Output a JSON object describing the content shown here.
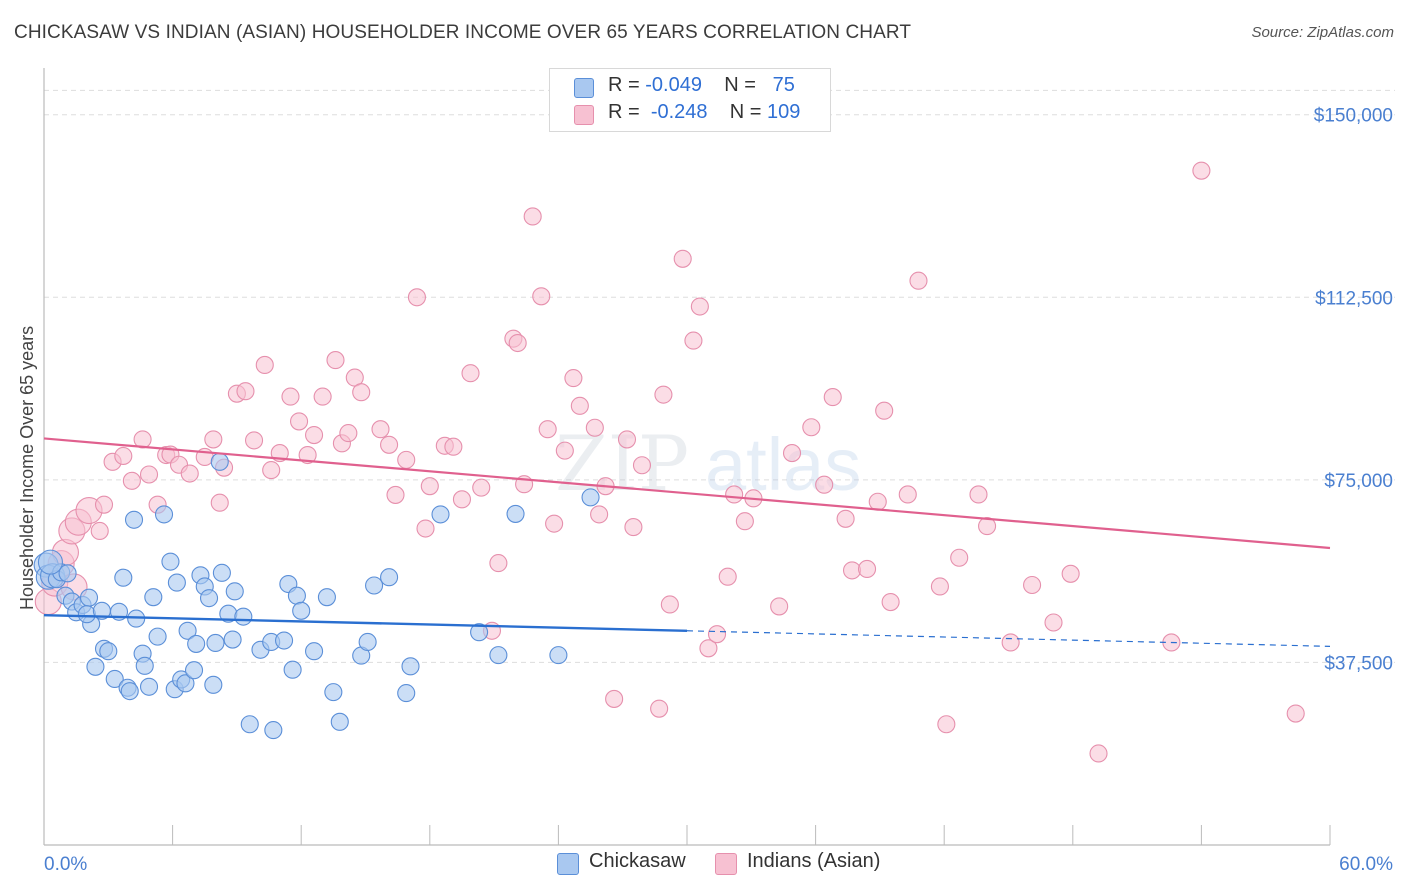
{
  "title": "CHICKASAW VS INDIAN (ASIAN) HOUSEHOLDER INCOME OVER 65 YEARS CORRELATION CHART",
  "source": "Source: ZipAtlas.com",
  "watermark": {
    "zip": "ZIP",
    "atlas": "atlas"
  },
  "legend": {
    "rows": [
      {
        "r_label": "R = ",
        "r_value": "-0.049",
        "n_label": "N = ",
        "n_value": "75"
      },
      {
        "r_label": "R = ",
        "r_value": "-0.248",
        "n_label": "N = ",
        "n_value": "109"
      }
    ]
  },
  "bottom_legend": {
    "series1": "Chickasaw",
    "series2": "Indians (Asian)"
  },
  "colors": {
    "blue_fill": "#a9c8f0",
    "blue_stroke": "#5b8fd8",
    "blue_line": "#2a6fd0",
    "pink_fill": "#f7c1d2",
    "pink_stroke": "#e690ad",
    "pink_line": "#e0608e",
    "tick_text": "#4a7fd0",
    "grid": "#dddddd"
  },
  "chart_data": {
    "type": "scatter",
    "title": "CHICKASAW VS INDIAN (ASIAN) HOUSEHOLDER INCOME OVER 65 YEARS CORRELATION CHART",
    "xlabel": "",
    "ylabel": "Householder Income Over 65 years",
    "xlim": [
      0,
      60
    ],
    "ylim": [
      0,
      160000
    ],
    "x_tick_labels": [
      "0.0%",
      "60.0%"
    ],
    "y_ticks": [
      {
        "value": 150000,
        "label": "$150,000"
      },
      {
        "value": 112500,
        "label": "$112,500"
      },
      {
        "value": 75000,
        "label": "$75,000"
      },
      {
        "value": 37500,
        "label": "$37,500"
      }
    ],
    "series": [
      {
        "name": "Chickasaw",
        "r": -0.049,
        "n": 75,
        "trend": {
          "x0": 0,
          "y0": 47200,
          "x1": 30,
          "y1": 44000,
          "dash_to_x": 60,
          "dash_to_y": 40800
        },
        "points": [
          [
            0.1,
            57500
          ],
          [
            0.2,
            55000
          ],
          [
            0.4,
            55300
          ],
          [
            0.6,
            54600
          ],
          [
            0.8,
            56000
          ],
          [
            1.0,
            51200
          ],
          [
            1.3,
            50000
          ],
          [
            1.5,
            47800
          ],
          [
            1.8,
            49300
          ],
          [
            2.1,
            50800
          ],
          [
            2.2,
            45400
          ],
          [
            2.0,
            47400
          ],
          [
            2.4,
            36600
          ],
          [
            2.8,
            40300
          ],
          [
            3.0,
            39800
          ],
          [
            3.3,
            34100
          ],
          [
            3.5,
            47900
          ],
          [
            3.7,
            54900
          ],
          [
            3.9,
            32300
          ],
          [
            4.0,
            31600
          ],
          [
            4.2,
            66800
          ],
          [
            4.3,
            46500
          ],
          [
            4.6,
            39300
          ],
          [
            4.7,
            36800
          ],
          [
            4.9,
            32500
          ],
          [
            5.1,
            50900
          ],
          [
            5.3,
            42800
          ],
          [
            5.6,
            67900
          ],
          [
            6.1,
            32000
          ],
          [
            6.2,
            53900
          ],
          [
            6.4,
            34000
          ],
          [
            6.6,
            33200
          ],
          [
            6.7,
            44000
          ],
          [
            7.0,
            35900
          ],
          [
            7.1,
            41300
          ],
          [
            7.3,
            55400
          ],
          [
            7.5,
            53100
          ],
          [
            7.7,
            50700
          ],
          [
            7.9,
            32900
          ],
          [
            8.0,
            41500
          ],
          [
            8.2,
            78700
          ],
          [
            8.3,
            55900
          ],
          [
            8.6,
            47500
          ],
          [
            8.8,
            42200
          ],
          [
            8.9,
            52100
          ],
          [
            9.3,
            46900
          ],
          [
            9.6,
            24800
          ],
          [
            10.1,
            40100
          ],
          [
            10.6,
            41700
          ],
          [
            10.7,
            23600
          ],
          [
            11.2,
            42000
          ],
          [
            11.4,
            53600
          ],
          [
            11.6,
            36000
          ],
          [
            11.8,
            51200
          ],
          [
            12.0,
            48100
          ],
          [
            12.6,
            39800
          ],
          [
            13.2,
            50900
          ],
          [
            13.5,
            31400
          ],
          [
            13.8,
            25300
          ],
          [
            14.8,
            38900
          ],
          [
            15.1,
            41700
          ],
          [
            15.4,
            53300
          ],
          [
            16.1,
            55000
          ],
          [
            16.9,
            31200
          ],
          [
            17.1,
            36700
          ],
          [
            18.5,
            67900
          ],
          [
            20.3,
            43700
          ],
          [
            21.2,
            39000
          ],
          [
            22.0,
            68000
          ],
          [
            24.0,
            39000
          ],
          [
            25.5,
            71400
          ],
          [
            0.3,
            58100
          ],
          [
            1.1,
            55800
          ],
          [
            2.7,
            48100
          ],
          [
            5.9,
            58200
          ]
        ]
      },
      {
        "name": "Indians (Asian)",
        "r": -0.248,
        "n": 109,
        "trend": {
          "x0": 0,
          "y0": 83500,
          "x1": 60,
          "y1": 61000
        },
        "points": [
          [
            0.2,
            50000
          ],
          [
            0.5,
            53800
          ],
          [
            0.8,
            57800
          ],
          [
            1.0,
            60100
          ],
          [
            1.3,
            64500
          ],
          [
            1.6,
            66300
          ],
          [
            2.1,
            68700
          ],
          [
            2.6,
            64500
          ],
          [
            2.8,
            69900
          ],
          [
            3.2,
            78700
          ],
          [
            3.7,
            79900
          ],
          [
            4.1,
            74800
          ],
          [
            4.6,
            83300
          ],
          [
            4.9,
            76100
          ],
          [
            5.3,
            69900
          ],
          [
            5.7,
            80100
          ],
          [
            5.9,
            80200
          ],
          [
            6.3,
            78100
          ],
          [
            6.8,
            76300
          ],
          [
            7.5,
            79700
          ],
          [
            7.9,
            83300
          ],
          [
            8.2,
            70300
          ],
          [
            8.4,
            77500
          ],
          [
            9.0,
            92700
          ],
          [
            9.4,
            93200
          ],
          [
            9.8,
            83100
          ],
          [
            10.3,
            98600
          ],
          [
            10.6,
            77000
          ],
          [
            11.0,
            80500
          ],
          [
            11.5,
            92100
          ],
          [
            11.9,
            87000
          ],
          [
            12.3,
            80100
          ],
          [
            12.6,
            84200
          ],
          [
            13.0,
            92100
          ],
          [
            13.6,
            99600
          ],
          [
            13.9,
            82500
          ],
          [
            14.2,
            84600
          ],
          [
            14.5,
            96000
          ],
          [
            14.8,
            93000
          ],
          [
            15.7,
            85400
          ],
          [
            16.1,
            82200
          ],
          [
            16.4,
            71900
          ],
          [
            16.9,
            79100
          ],
          [
            17.4,
            112500
          ],
          [
            17.8,
            65000
          ],
          [
            18.0,
            73700
          ],
          [
            18.7,
            82000
          ],
          [
            19.1,
            81800
          ],
          [
            19.5,
            71000
          ],
          [
            19.9,
            96900
          ],
          [
            20.4,
            73400
          ],
          [
            20.9,
            44000
          ],
          [
            21.2,
            57900
          ],
          [
            21.9,
            104000
          ],
          [
            22.1,
            103100
          ],
          [
            22.4,
            74100
          ],
          [
            22.8,
            129100
          ],
          [
            23.2,
            112700
          ],
          [
            23.5,
            85400
          ],
          [
            23.8,
            66000
          ],
          [
            24.3,
            81000
          ],
          [
            24.7,
            95900
          ],
          [
            25.0,
            90200
          ],
          [
            25.7,
            85700
          ],
          [
            25.9,
            67900
          ],
          [
            26.2,
            73700
          ],
          [
            26.6,
            30000
          ],
          [
            27.2,
            83300
          ],
          [
            27.5,
            65300
          ],
          [
            27.9,
            78000
          ],
          [
            28.7,
            28000
          ],
          [
            28.9,
            92500
          ],
          [
            29.2,
            49400
          ],
          [
            29.8,
            120400
          ],
          [
            30.3,
            103600
          ],
          [
            30.6,
            110600
          ],
          [
            31.0,
            40400
          ],
          [
            31.4,
            43300
          ],
          [
            31.9,
            55100
          ],
          [
            32.2,
            72000
          ],
          [
            32.7,
            66500
          ],
          [
            33.1,
            71200
          ],
          [
            34.3,
            49000
          ],
          [
            34.9,
            80500
          ],
          [
            35.8,
            85800
          ],
          [
            36.4,
            74000
          ],
          [
            36.8,
            92000
          ],
          [
            37.4,
            67000
          ],
          [
            37.7,
            56400
          ],
          [
            38.4,
            56700
          ],
          [
            38.9,
            70500
          ],
          [
            39.2,
            89200
          ],
          [
            39.5,
            49900
          ],
          [
            40.3,
            72000
          ],
          [
            40.8,
            115900
          ],
          [
            41.8,
            53100
          ],
          [
            42.1,
            24800
          ],
          [
            42.7,
            59000
          ],
          [
            43.6,
            72000
          ],
          [
            44.0,
            65500
          ],
          [
            45.1,
            41600
          ],
          [
            46.1,
            53400
          ],
          [
            47.1,
            45700
          ],
          [
            47.9,
            55700
          ],
          [
            49.2,
            18800
          ],
          [
            52.6,
            41600
          ],
          [
            54.0,
            138500
          ],
          [
            58.4,
            27000
          ],
          [
            1.4,
            53000
          ]
        ]
      }
    ]
  }
}
